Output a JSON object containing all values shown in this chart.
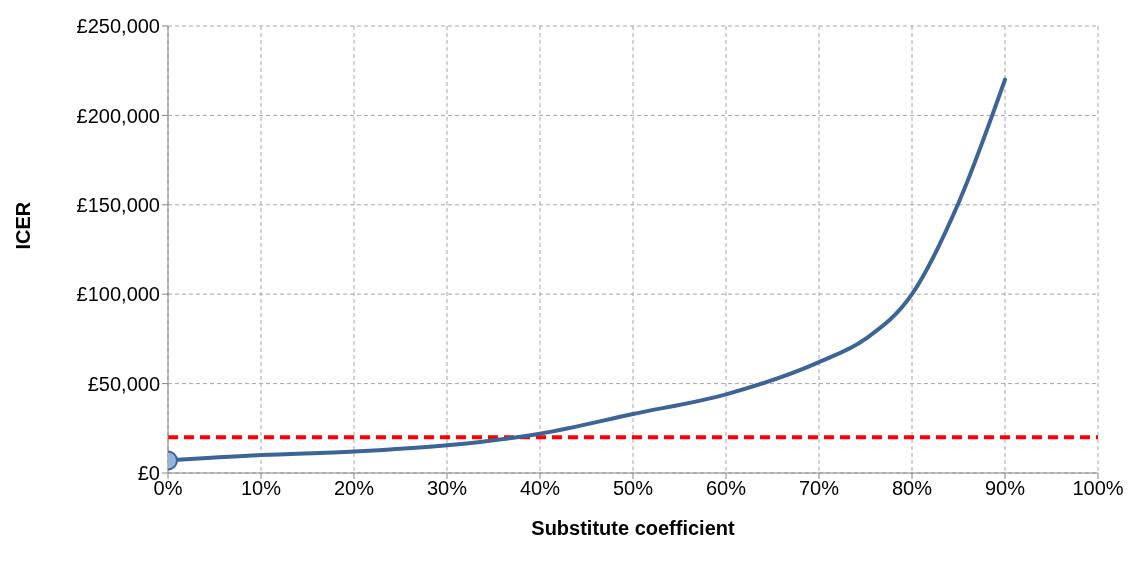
{
  "chart_data": {
    "type": "line",
    "xlabel": "Substitute coefficient",
    "ylabel": "ICER",
    "x": [
      0,
      10,
      20,
      30,
      40,
      50,
      60,
      70,
      75,
      80,
      85,
      90
    ],
    "series": [
      {
        "color": "#3c6496",
        "values": [
          7000,
          10000,
          12000,
          15500,
          22000,
          33000,
          44000,
          62000,
          75000,
          100000,
          151000,
          220000
        ]
      },
      {
        "type": "scatter",
        "color": "#95b3d7",
        "x": [
          0
        ],
        "values": [
          7000
        ],
        "marker": "circle"
      }
    ],
    "xlim": [
      0,
      100
    ],
    "xticks": [
      {
        "value": 0,
        "label": "0%"
      },
      {
        "value": 10,
        "label": "10%"
      },
      {
        "value": 20,
        "label": "20%"
      },
      {
        "value": 30,
        "label": "30%"
      },
      {
        "value": 40,
        "label": "40%"
      },
      {
        "value": 50,
        "label": "50%"
      },
      {
        "value": 60,
        "label": "60%"
      },
      {
        "value": 70,
        "label": "70%"
      },
      {
        "value": 80,
        "label": "80%"
      },
      {
        "value": 90,
        "label": "90%"
      },
      {
        "value": 100,
        "label": "100%"
      }
    ],
    "ylim": [
      0,
      250000
    ],
    "yticks": [
      {
        "value": 0,
        "label": "£0"
      },
      {
        "value": 50000,
        "label": "£50,000"
      },
      {
        "value": 100000,
        "label": "£100,000"
      },
      {
        "value": 150000,
        "label": "£150,000"
      },
      {
        "value": 200000,
        "label": "£200,000"
      },
      {
        "value": 250000,
        "label": "£250,000"
      }
    ],
    "ref_lines": [
      {
        "axis": "y",
        "value": 20000,
        "color": "#ff0000",
        "line_style": "dashed"
      }
    ],
    "grid": true,
    "marker": "none"
  }
}
